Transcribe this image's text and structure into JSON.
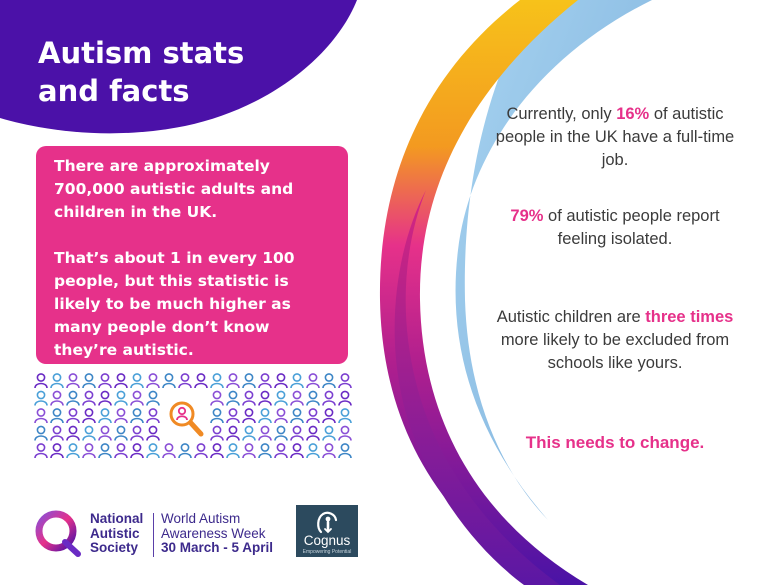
{
  "title": {
    "line1": "Autism stats",
    "line2": "and facts"
  },
  "box": {
    "paragraph1": "There are approximately 700,000 autistic adults and children in the UK.",
    "paragraph2": "That’s about 1 in every 100 people, but this statistic is likely to be much higher as many people don’t know they’re autistic."
  },
  "people_graphic": {
    "rows": 5,
    "columns": 20,
    "highlighted_position": "row 3, column 10"
  },
  "facts": {
    "f1": {
      "pre": "Currently, only ",
      "highlight": "16%",
      "post": " of autistic people in the UK have a full-time job."
    },
    "f2": {
      "highlight": "79%",
      "post": " of autistic people report feeling isolated."
    },
    "f3": {
      "pre": "Autistic children are ",
      "highlight": "three times",
      "post": " more likely to be excluded from schools like yours."
    },
    "f4": "This needs to change."
  },
  "footer": {
    "nas": {
      "line1": "National",
      "line2": "Autistic",
      "line3": "Society"
    },
    "waw": {
      "line1": "World Autism",
      "line2": "Awareness Week",
      "line3": "30 March - 5 April"
    },
    "cognus": {
      "name": "Cognus",
      "tagline": "Empowering Potential"
    }
  },
  "colors": {
    "purple": "#4b11a8",
    "pink": "#e6318a",
    "orange": "#f08a24",
    "yellow": "#f7c21a",
    "light_blue": "#8cc2e8",
    "text": "#3b3b3b",
    "navy": "#2c4a5e"
  },
  "icons": [
    "person-outline-icon",
    "magnifying-glass-icon",
    "nas-ring-logo",
    "cognus-person-icon"
  ]
}
